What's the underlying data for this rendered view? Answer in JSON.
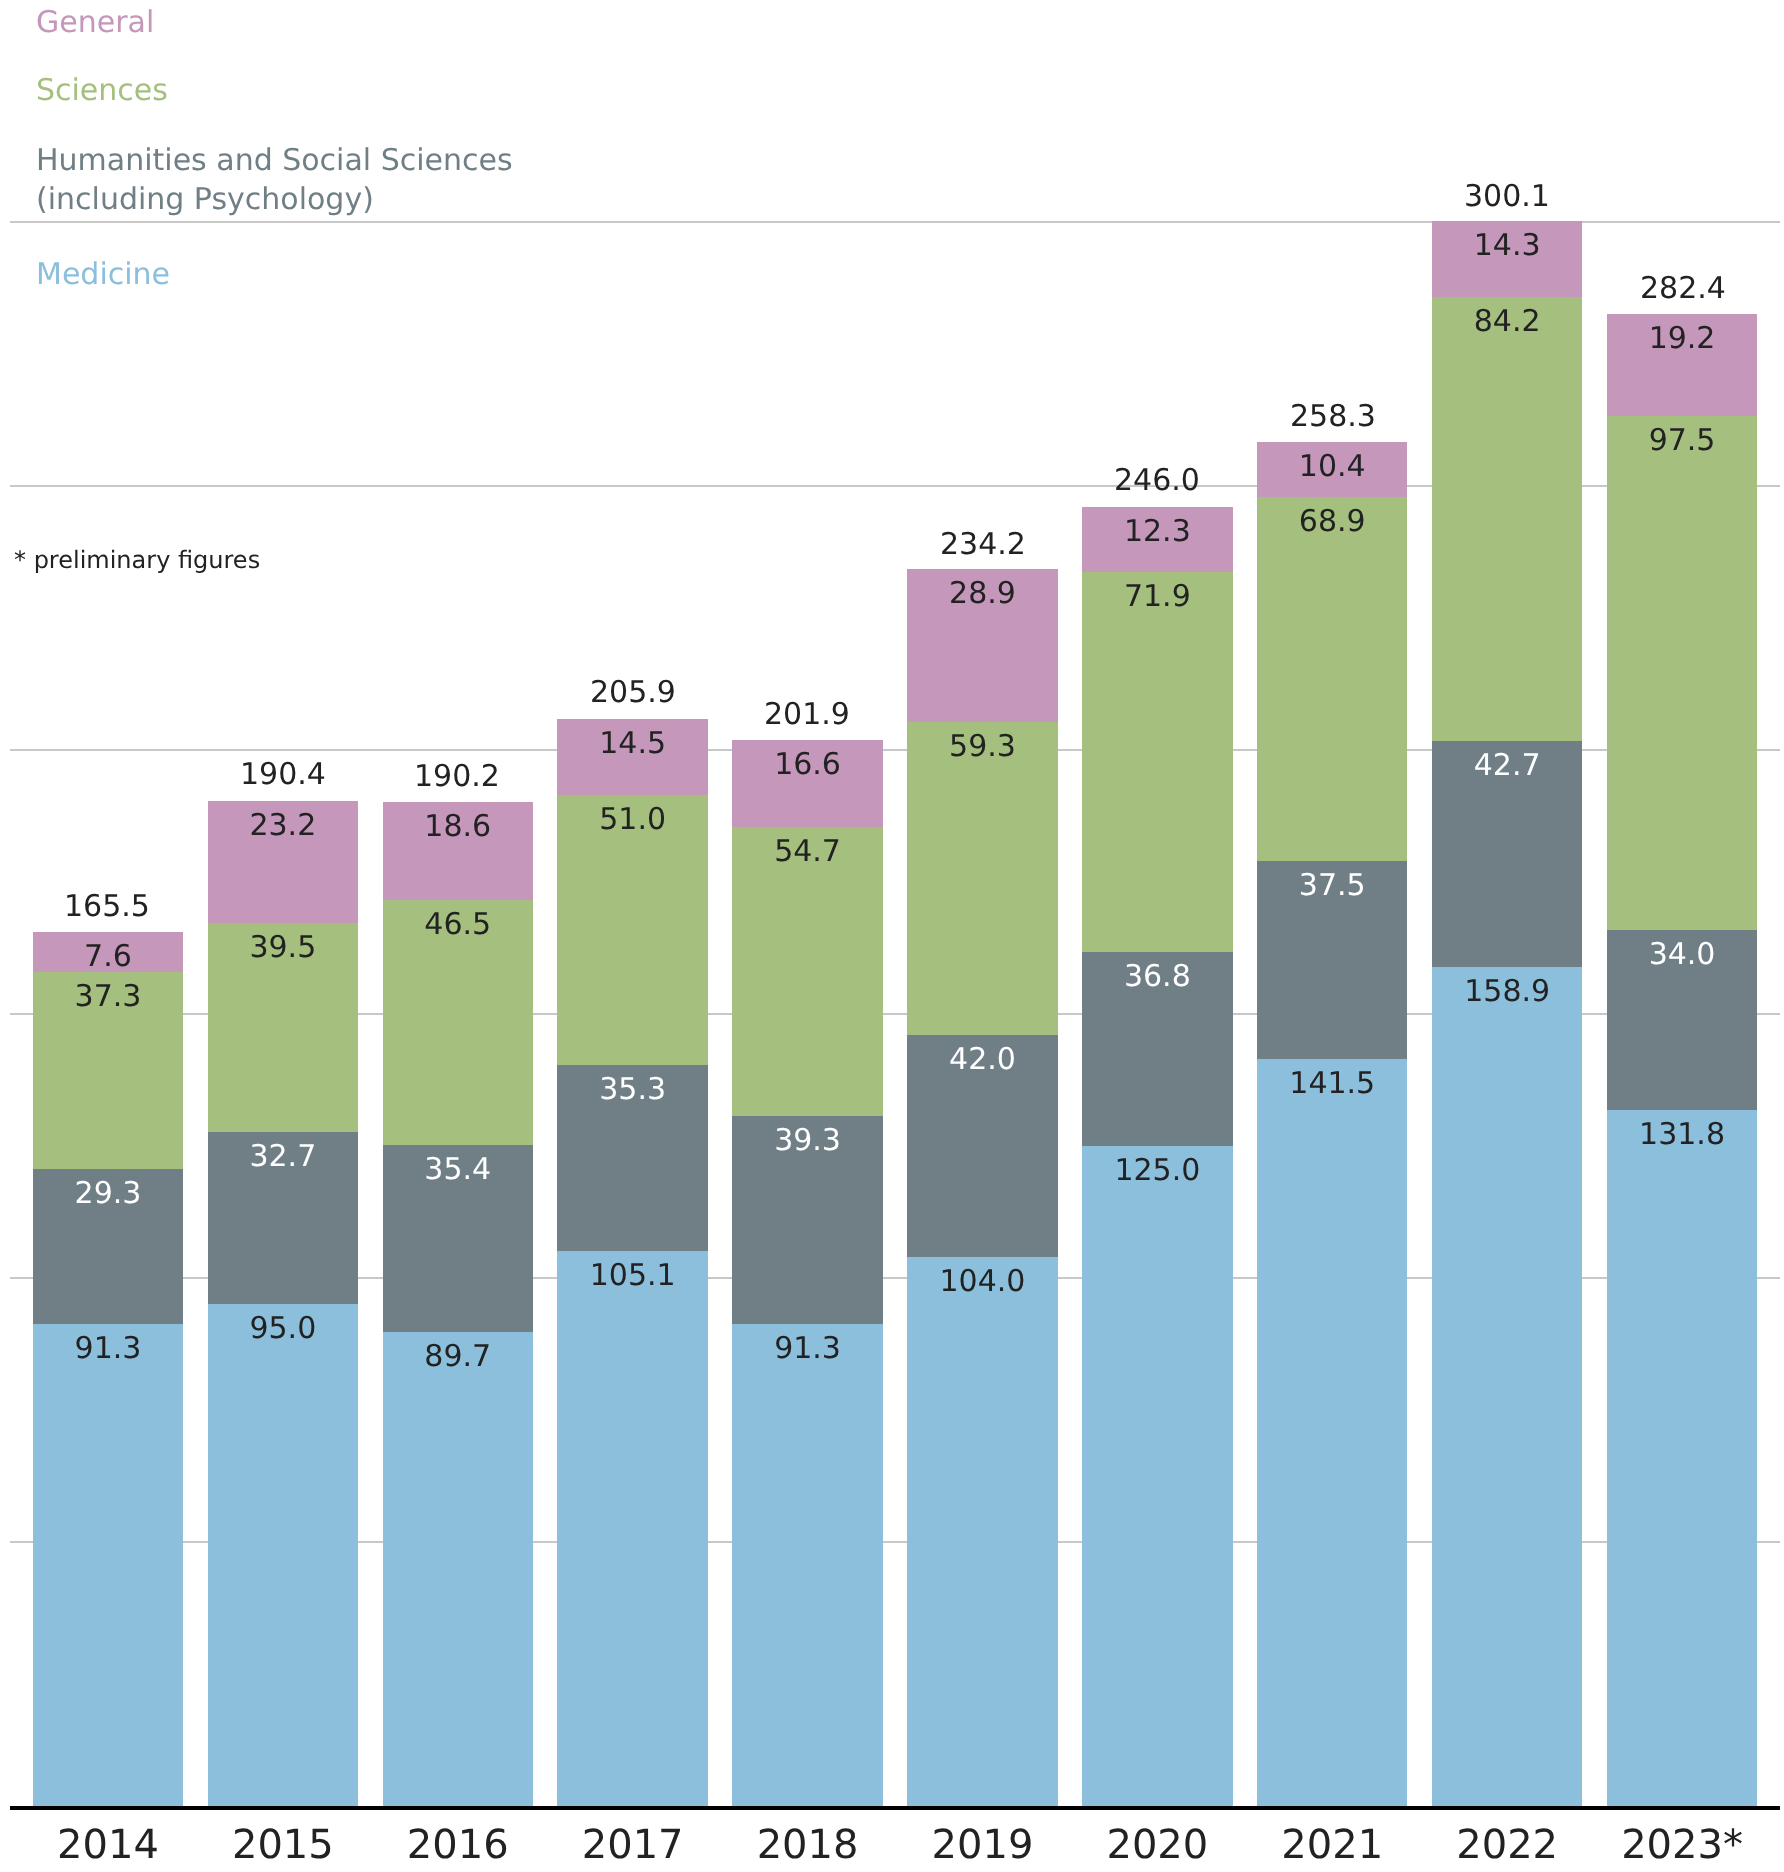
{
  "chart_data": {
    "type": "bar",
    "stacked": true,
    "categories": [
      "2014",
      "2015",
      "2016",
      "2017",
      "2018",
      "2019",
      "2020",
      "2021",
      "2022",
      "2023*"
    ],
    "series": [
      {
        "name": "Medicine",
        "color": "#8bbfdc",
        "values": [
          91.3,
          95.0,
          89.7,
          105.1,
          91.3,
          104.0,
          125.0,
          141.5,
          158.9,
          131.8
        ],
        "value_labels": [
          "91.3",
          "95.0",
          "89.7",
          "105.1",
          "91.3",
          "104.0",
          "125.0",
          "141.5",
          "158.9",
          "131.8"
        ]
      },
      {
        "name": "Humanities and Social Sciences\n(including Psychology)",
        "color": "#707f86",
        "values": [
          29.3,
          32.7,
          35.4,
          35.3,
          39.3,
          42.0,
          36.8,
          37.5,
          42.7,
          34.0
        ],
        "value_labels": [
          "29.3",
          "32.7",
          "35.4",
          "35.3",
          "39.3",
          "42.0",
          "36.8",
          "37.5",
          "42.7",
          "34.0"
        ]
      },
      {
        "name": "Sciences",
        "color": "#a5c07e",
        "values": [
          37.3,
          39.5,
          46.5,
          51.0,
          54.7,
          59.3,
          71.9,
          68.9,
          84.2,
          97.5
        ],
        "value_labels": [
          "37.3",
          "39.5",
          "46.5",
          "51.0",
          "54.7",
          "59.3",
          "71.9",
          "68.9",
          "84.2",
          "97.5"
        ]
      },
      {
        "name": "General",
        "color": "#c497bb",
        "values": [
          7.6,
          23.2,
          18.6,
          14.5,
          16.6,
          28.9,
          12.3,
          10.4,
          14.3,
          19.2
        ],
        "value_labels": [
          "7.6",
          "23.2",
          "18.6",
          "14.5",
          "16.6",
          "28.9",
          "12.3",
          "10.4",
          "14.3",
          "19.2"
        ]
      }
    ],
    "totals": [
      "165.5",
      "190.4",
      "190.2",
      "205.9",
      "201.9",
      "234.2",
      "246.0",
      "258.3",
      "300.1",
      "282.4"
    ],
    "ylim": [
      0,
      342
    ],
    "yticks": [
      {
        "value": 0,
        "label": null
      },
      {
        "value": 50,
        "label": null
      },
      {
        "value": 100,
        "label": null
      },
      {
        "value": 150,
        "label": null
      },
      {
        "value": 200,
        "label": null
      },
      {
        "value": 250,
        "label": null
      },
      {
        "value": 300,
        "label": null
      }
    ],
    "grid": "y",
    "tick_labels": "x",
    "legend": "top left",
    "annotations": [
      "* preliminary figures"
    ]
  }
}
